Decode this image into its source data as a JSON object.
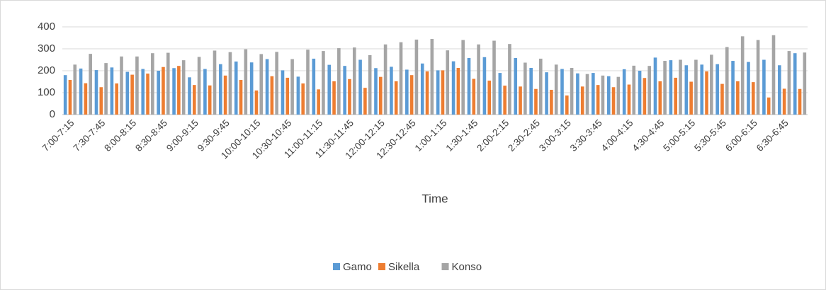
{
  "chart_data": {
    "type": "bar",
    "x_label": "Time",
    "categories": [
      "7:00-7:15",
      null,
      "7:30-7:45",
      null,
      "8:00-8:15",
      null,
      "8:30-8:45",
      null,
      "9:00-9:15",
      null,
      "9:30-9:45",
      null,
      "10:00-10:15",
      null,
      "10:30-10:45",
      null,
      "11:00-11:15",
      null,
      "11:30-11:45",
      null,
      "12:00-12:15",
      null,
      "12:30-12:45",
      null,
      "1:00-1:15",
      null,
      "1:30-1:45",
      null,
      "2:00-2:15",
      null,
      "2:30-2:45",
      null,
      "3:00-3:15",
      null,
      "3:30-3:45",
      null,
      "4:00-4:15",
      null,
      "4:30-4:45",
      null,
      "5:00-5:15",
      null,
      "5:30-5:45",
      null,
      "6:00-6:15",
      null,
      "6:30-6:45",
      null
    ],
    "series": [
      {
        "name": "Gamo",
        "color": "#5b9bd5",
        "values": [
          180,
          210,
          203,
          215,
          195,
          208,
          200,
          212,
          170,
          208,
          230,
          242,
          238,
          253,
          202,
          173,
          255,
          227,
          222,
          250,
          212,
          218,
          205,
          233,
          202,
          243,
          258,
          262,
          190,
          258,
          213,
          193,
          208,
          188,
          190,
          175,
          207,
          200,
          260,
          248,
          225,
          228,
          230,
          245,
          240,
          250,
          225,
          280
        ]
      },
      {
        "name": "Sikella",
        "color": "#ed7d31",
        "values": [
          158,
          143,
          125,
          142,
          182,
          187,
          217,
          222,
          135,
          133,
          178,
          158,
          110,
          175,
          168,
          142,
          115,
          152,
          162,
          122,
          172,
          152,
          180,
          197,
          202,
          213,
          163,
          155,
          132,
          128,
          117,
          113,
          87,
          128,
          135,
          125,
          137,
          167,
          152,
          168,
          150,
          197,
          140,
          152,
          148,
          78,
          118,
          117
        ]
      },
      {
        "name": "Konso",
        "color": "#a5a5a5",
        "values": [
          228,
          277,
          235,
          265,
          265,
          280,
          282,
          248,
          263,
          292,
          285,
          298,
          276,
          286,
          253,
          296,
          290,
          303,
          306,
          271,
          320,
          330,
          342,
          345,
          293,
          340,
          320,
          337,
          322,
          237,
          255,
          228,
          213,
          185,
          178,
          172,
          223,
          222,
          245,
          250,
          250,
          273,
          308,
          357,
          340,
          362,
          290,
          283
        ]
      }
    ],
    "ylim": [
      0,
      400
    ],
    "yticks": [
      0,
      100,
      200,
      300,
      400
    ],
    "grid": true,
    "legend": "bottom"
  }
}
